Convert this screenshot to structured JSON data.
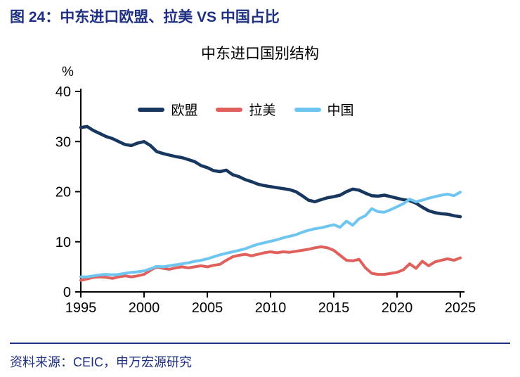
{
  "page": {
    "figure_title": "图 24：中东进口欧盟、拉美 VS 中国占比",
    "source": "资料来源：CEIC，申万宏源研究"
  },
  "colors": {
    "accent_navy": "#1F3082",
    "eu_line": "#17375E",
    "latam_line": "#E0605C",
    "china_line": "#6EC6F0",
    "axis": "#000000"
  },
  "chart_data": {
    "type": "line",
    "title": "中东进口国别结构",
    "ylabel": "%",
    "xlabel": "",
    "ylim": [
      0,
      40
    ],
    "yticks": [
      0,
      10,
      20,
      30,
      40
    ],
    "xlim": [
      1995,
      2025
    ],
    "xticks": [
      1995,
      2000,
      2005,
      2010,
      2015,
      2020,
      2025
    ],
    "grid": false,
    "legend_position": "top-inside",
    "x_start": 1995,
    "x_step": 0.5,
    "series": [
      {
        "name": "欧盟",
        "color": "#17375E",
        "width": 4.5,
        "values": [
          32.8,
          33.0,
          32.2,
          31.6,
          31.0,
          30.6,
          30.0,
          29.4,
          29.2,
          29.7,
          30.0,
          29.2,
          28.0,
          27.6,
          27.3,
          27.0,
          26.8,
          26.4,
          26.0,
          25.2,
          24.8,
          24.2,
          24.0,
          24.3,
          23.4,
          23.0,
          22.4,
          22.0,
          21.5,
          21.2,
          21.0,
          20.8,
          20.6,
          20.4,
          20.0,
          19.2,
          18.3,
          18.0,
          18.4,
          18.8,
          19.0,
          19.3,
          20.0,
          20.5,
          20.3,
          19.7,
          19.2,
          19.1,
          19.3,
          19.0,
          18.7,
          18.4,
          18.2,
          17.7,
          16.9,
          16.2,
          15.8,
          15.6,
          15.5,
          15.2,
          15.0
        ]
      },
      {
        "name": "拉美",
        "color": "#E0605C",
        "width": 4,
        "values": [
          2.3,
          2.6,
          2.9,
          3.0,
          2.9,
          2.7,
          3.0,
          3.2,
          3.0,
          3.2,
          3.5,
          4.3,
          5.0,
          4.7,
          4.5,
          4.8,
          5.0,
          4.8,
          5.0,
          5.2,
          5.0,
          5.3,
          5.5,
          6.3,
          7.0,
          7.3,
          7.5,
          7.2,
          7.5,
          7.8,
          8.0,
          7.8,
          8.0,
          7.9,
          8.1,
          8.3,
          8.5,
          8.8,
          9.0,
          8.8,
          8.3,
          7.3,
          6.3,
          6.2,
          6.5,
          4.8,
          3.7,
          3.5,
          3.5,
          3.7,
          3.9,
          4.4,
          5.6,
          4.7,
          6.1,
          5.2,
          6.0,
          6.3,
          6.6,
          6.3,
          6.8
        ]
      },
      {
        "name": "中国",
        "color": "#6EC6F0",
        "width": 4,
        "values": [
          3.0,
          3.0,
          3.2,
          3.4,
          3.5,
          3.4,
          3.5,
          3.7,
          3.9,
          4.0,
          4.2,
          4.6,
          5.1,
          5.0,
          5.2,
          5.4,
          5.6,
          5.8,
          6.1,
          6.3,
          6.6,
          7.0,
          7.4,
          7.7,
          8.0,
          8.3,
          8.6,
          9.1,
          9.5,
          9.8,
          10.1,
          10.4,
          10.8,
          11.1,
          11.4,
          11.9,
          12.3,
          12.6,
          12.8,
          13.1,
          13.4,
          12.9,
          14.1,
          13.3,
          14.6,
          15.2,
          16.6,
          16.0,
          15.9,
          16.4,
          17.0,
          17.6,
          18.5,
          18.0,
          18.3,
          18.7,
          19.0,
          19.3,
          19.5,
          19.2,
          19.9
        ]
      }
    ]
  }
}
